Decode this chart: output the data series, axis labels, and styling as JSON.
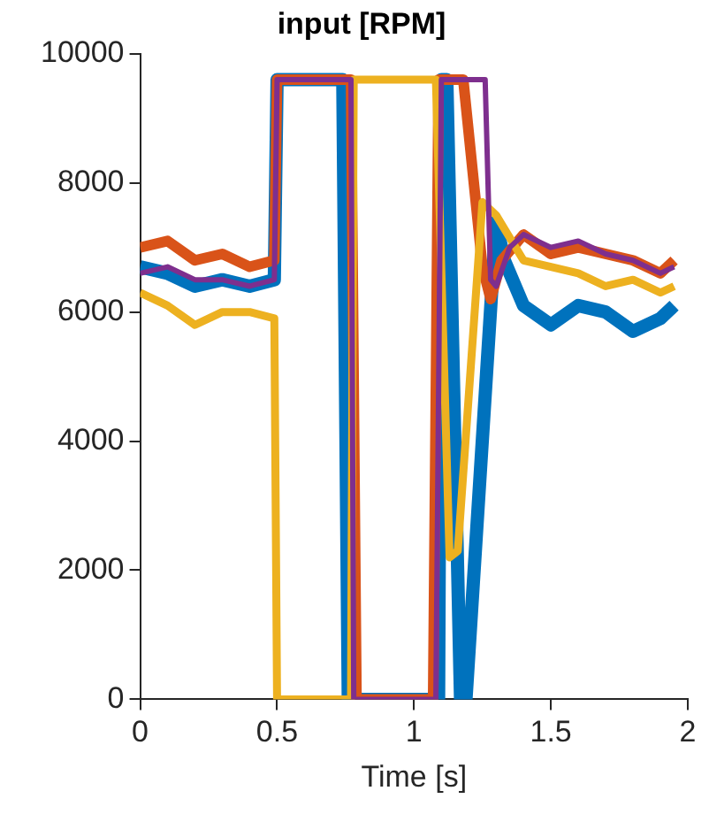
{
  "chart_data": {
    "type": "line",
    "title": "input [RPM]",
    "xlabel": "Time [s]",
    "xlim": [
      0,
      2
    ],
    "xticks": [
      0,
      0.5,
      1,
      1.5,
      2
    ],
    "ylim": [
      0,
      10000
    ],
    "yticks": [
      0,
      2000,
      4000,
      6000,
      8000,
      10000
    ],
    "grid": false,
    "legend": false,
    "marker": "none",
    "line_style": "solid",
    "series": [
      {
        "color": "#0072bd",
        "x": [
          0,
          0.1,
          0.2,
          0.3,
          0.4,
          0.49,
          0.5,
          0.74,
          0.76,
          1.09,
          1.1,
          1.12,
          1.17,
          1.19,
          1.3,
          1.33,
          1.4,
          1.5,
          1.6,
          1.7,
          1.8,
          1.9,
          1.95
        ],
        "values": [
          6700,
          6600,
          6400,
          6500,
          6400,
          6500,
          9600,
          9600,
          0,
          0,
          9600,
          9600,
          0,
          0,
          7400,
          6800,
          6100,
          5800,
          6100,
          6000,
          5700,
          5900,
          6100
        ]
      },
      {
        "color": "#d95319",
        "x": [
          0,
          0.1,
          0.2,
          0.3,
          0.4,
          0.49,
          0.5,
          0.77,
          0.79,
          1.07,
          1.09,
          1.18,
          1.25,
          1.28,
          1.32,
          1.4,
          1.5,
          1.6,
          1.7,
          1.8,
          1.9,
          1.95
        ],
        "values": [
          7000,
          7100,
          6800,
          6900,
          6700,
          6800,
          9600,
          9600,
          0,
          0,
          9600,
          9600,
          6700,
          6200,
          6800,
          7200,
          6900,
          7000,
          6900,
          6800,
          6600,
          6800
        ]
      },
      {
        "color": "#edb120",
        "x": [
          0,
          0.1,
          0.2,
          0.3,
          0.4,
          0.49,
          0.5,
          0.77,
          0.78,
          1.08,
          1.13,
          1.16,
          1.25,
          1.3,
          1.4,
          1.5,
          1.6,
          1.7,
          1.8,
          1.9,
          1.95
        ],
        "values": [
          6300,
          6100,
          5800,
          6000,
          6000,
          5900,
          0,
          0,
          9600,
          9600,
          2200,
          2300,
          7700,
          7500,
          6800,
          6700,
          6600,
          6400,
          6500,
          6300,
          6400
        ]
      },
      {
        "color": "#7e2f8e",
        "x": [
          0,
          0.1,
          0.2,
          0.3,
          0.4,
          0.49,
          0.5,
          0.77,
          0.78,
          1.08,
          1.1,
          1.26,
          1.28,
          1.3,
          1.35,
          1.4,
          1.5,
          1.6,
          1.7,
          1.8,
          1.9,
          1.95
        ],
        "values": [
          6600,
          6700,
          6500,
          6500,
          6400,
          6500,
          9600,
          9600,
          0,
          0,
          9600,
          9600,
          6500,
          6400,
          7000,
          7200,
          7000,
          7100,
          6900,
          6800,
          6600,
          6700
        ]
      }
    ]
  }
}
